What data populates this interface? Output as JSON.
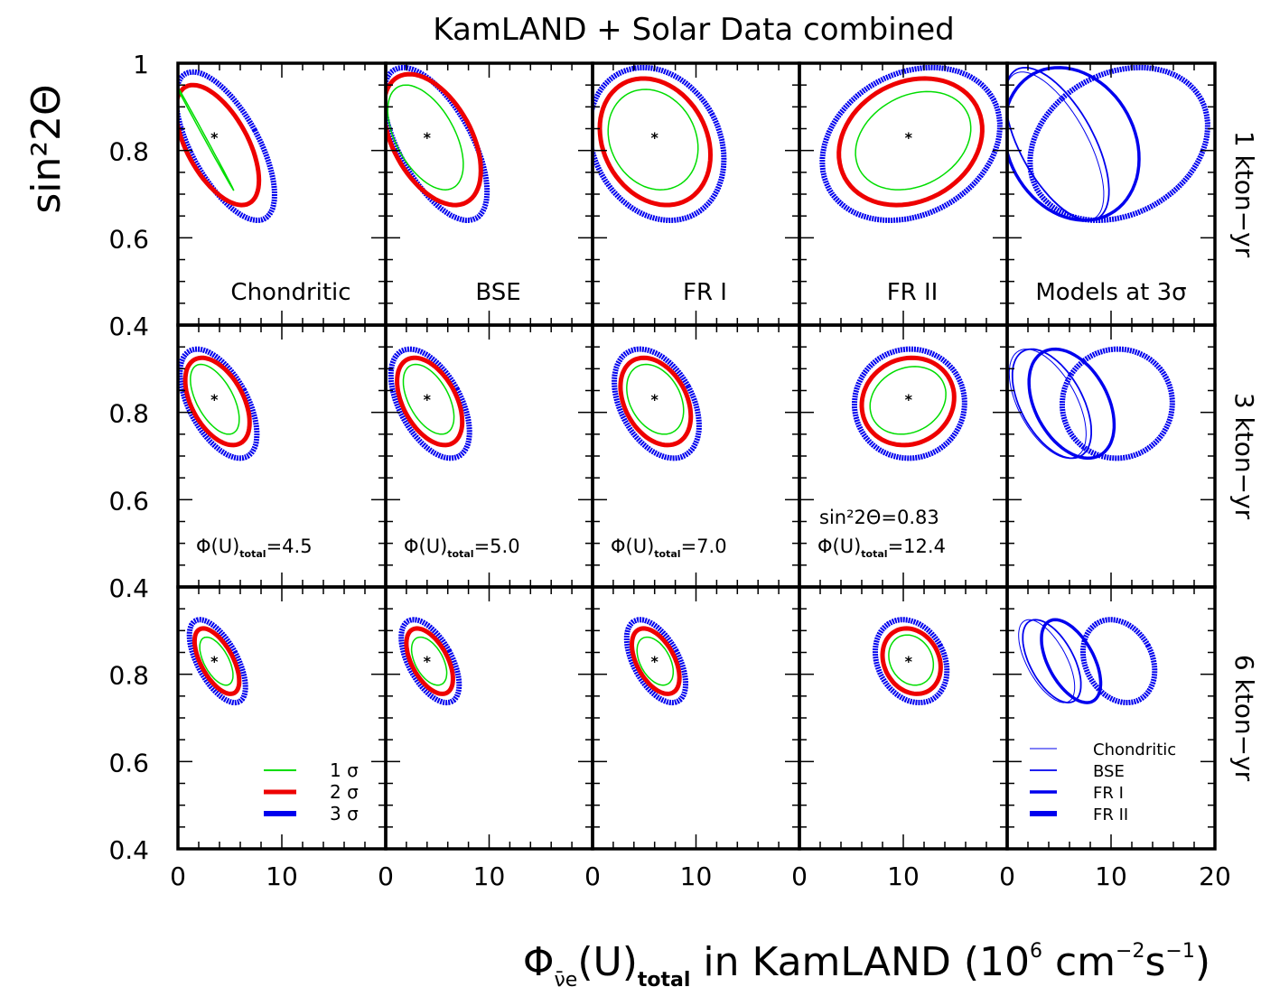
{
  "chart_data": {
    "type": "contour-grid",
    "title": "KamLAND + Solar Data combined",
    "ylabel": "sin²2Θ",
    "xlabel": {
      "main": "Φ",
      "sub": "ν̄e",
      "rest": "(U)",
      "rest_sub": "total",
      "tail": " in KamLAND (10",
      "tail_sup": "6",
      "tail2": " cm",
      "tail2_sup": "−2",
      "tail3": "s",
      "tail3_sup": "−1",
      "tail4": ")"
    },
    "xlim": [
      0,
      20
    ],
    "ylim": [
      0.4,
      1.0
    ],
    "panel_xticks": [
      "0",
      "10"
    ],
    "last_panel_xticks": [
      "0",
      "10",
      "20"
    ],
    "yticks_row1": [
      "1",
      "0.8",
      "0.6",
      "0.4"
    ],
    "yticks_row": [
      "0.8",
      "0.6",
      "0.4"
    ],
    "rows": [
      "1 kton−yr",
      "3 kton−yr",
      "6 kton−yr"
    ],
    "models": [
      {
        "name": "Chondritic",
        "flux": 4.5,
        "flux_label": "=4.5"
      },
      {
        "name": "BSE",
        "flux": 5.0,
        "flux_label": "=5.0"
      },
      {
        "name": "FR I",
        "flux": 7.0,
        "flux_label": "=7.0"
      },
      {
        "name": "FR II",
        "flux": 12.4,
        "flux_label": "=12.4"
      }
    ],
    "comparison_panel_label": "Models at 3σ",
    "true_sin2": 0.83,
    "sin2_annotation": "sin²2Θ=0.83",
    "phi_prefix": "Φ(U)",
    "phi_sub": "total",
    "best_fit": [
      {
        "model": "Chondritic",
        "x": 3.5,
        "y": 0.83
      },
      {
        "model": "BSE",
        "x": 4.0,
        "y": 0.83
      },
      {
        "model": "FR I",
        "x": 6.0,
        "y": 0.83
      },
      {
        "model": "FR II",
        "x": 10.5,
        "y": 0.83
      }
    ],
    "contours": {
      "1 kton−yr": {
        "Chondritic": {
          "1σ": [
            [
              -0.2,
              0.71
            ],
            [
              4.9,
              0.97
            ]
          ],
          "2σ": [
            [
              -0.2,
              0.675
            ],
            [
              7.8,
              0.95
            ]
          ],
          "3σ": [
            [
              -0.2,
              0.64
            ],
            [
              9.3,
              0.98
            ]
          ]
        },
        "BSE": {
          "1σ": [
            [
              0.2,
              0.71
            ],
            [
              7.5,
              0.95
            ]
          ],
          "2σ": [
            [
              -0.2,
              0.675
            ],
            [
              9.2,
              0.975
            ]
          ],
          "3σ": [
            [
              -0.2,
              0.64
            ],
            [
              9.8,
              0.99
            ]
          ]
        },
        "FR I": {
          "1σ": [
            [
              1.5,
              0.71
            ],
            [
              10.2,
              0.94
            ]
          ],
          "2σ": [
            [
              0.7,
              0.675
            ],
            [
              11.4,
              0.965
            ]
          ],
          "3σ": [
            [
              -0.3,
              0.64
            ],
            [
              12.7,
              0.99
            ]
          ]
        },
        "FR II": {
          "1σ": [
            [
              5.4,
              0.71
            ],
            [
              16.5,
              0.935
            ]
          ],
          "2σ": [
            [
              3.8,
              0.675
            ],
            [
              17.6,
              0.965
            ]
          ],
          "3σ": [
            [
              2.2,
              0.64
            ],
            [
              19.3,
              0.99
            ]
          ]
        }
      },
      "3 kton−yr": {
        "Chondritic": {
          "1σ": [
            [
              1.2,
              0.75
            ],
            [
              5.9,
              0.91
            ]
          ],
          "2σ": [
            [
              0.7,
              0.725
            ],
            [
              6.9,
              0.925
            ]
          ],
          "3σ": [
            [
              0.2,
              0.695
            ],
            [
              7.6,
              0.945
            ]
          ]
        },
        "BSE": {
          "1σ": [
            [
              1.7,
              0.75
            ],
            [
              6.6,
              0.91
            ]
          ],
          "2σ": [
            [
              1.1,
              0.725
            ],
            [
              7.4,
              0.925
            ]
          ],
          "3σ": [
            [
              0.5,
              0.695
            ],
            [
              8.1,
              0.945
            ]
          ]
        },
        "FR I": {
          "1σ": [
            [
              3.3,
              0.75
            ],
            [
              8.8,
              0.91
            ]
          ],
          "2σ": [
            [
              2.7,
              0.725
            ],
            [
              9.5,
              0.925
            ]
          ],
          "3σ": [
            [
              2.1,
              0.695
            ],
            [
              10.3,
              0.945
            ]
          ]
        },
        "FR II": {
          "1σ": [
            [
              6.8,
              0.75
            ],
            [
              14.1,
              0.905
            ]
          ],
          "2σ": [
            [
              6.0,
              0.725
            ],
            [
              14.9,
              0.925
            ]
          ],
          "3σ": [
            [
              5.3,
              0.695
            ],
            [
              15.9,
              0.945
            ]
          ]
        }
      },
      "6 kton−yr": {
        "Chondritic": {
          "1σ": [
            [
              2.1,
              0.775
            ],
            [
              5.3,
              0.885
            ]
          ],
          "2σ": [
            [
              1.6,
              0.755
            ],
            [
              5.9,
              0.905
            ]
          ],
          "3σ": [
            [
              1.1,
              0.735
            ],
            [
              6.5,
              0.925
            ]
          ]
        },
        "BSE": {
          "1σ": [
            [
              2.5,
              0.775
            ],
            [
              5.9,
              0.885
            ]
          ],
          "2σ": [
            [
              2.0,
              0.755
            ],
            [
              6.5,
              0.905
            ]
          ],
          "3σ": [
            [
              1.5,
              0.735
            ],
            [
              7.1,
              0.925
            ]
          ]
        },
        "FR I": {
          "1σ": [
            [
              4.3,
              0.775
            ],
            [
              7.8,
              0.885
            ]
          ],
          "2σ": [
            [
              3.8,
              0.755
            ],
            [
              8.4,
              0.905
            ]
          ],
          "3σ": [
            [
              3.3,
              0.735
            ],
            [
              9.0,
              0.925
            ]
          ]
        },
        "FR II": {
          "1σ": [
            [
              8.6,
              0.775
            ],
            [
              12.9,
              0.89
            ]
          ],
          "2σ": [
            [
              8.0,
              0.755
            ],
            [
              13.6,
              0.905
            ]
          ],
          "3σ": [
            [
              7.3,
              0.735
            ],
            [
              14.2,
              0.925
            ]
          ]
        }
      }
    },
    "sigma_legend": [
      {
        "label": "1 σ",
        "color": "#00dd00"
      },
      {
        "label": "2 σ",
        "color": "#ee0000"
      },
      {
        "label": "3 σ",
        "color": "#0000ee"
      }
    ],
    "model_legend": [
      "Chondritic",
      "BSE",
      "FR I",
      "FR II"
    ],
    "colors": {
      "sigma1": "#00dd00",
      "sigma2": "#ee0000",
      "sigma3": "#0000ee",
      "best_fit": "#ff00ff",
      "frame": "#000000"
    }
  }
}
